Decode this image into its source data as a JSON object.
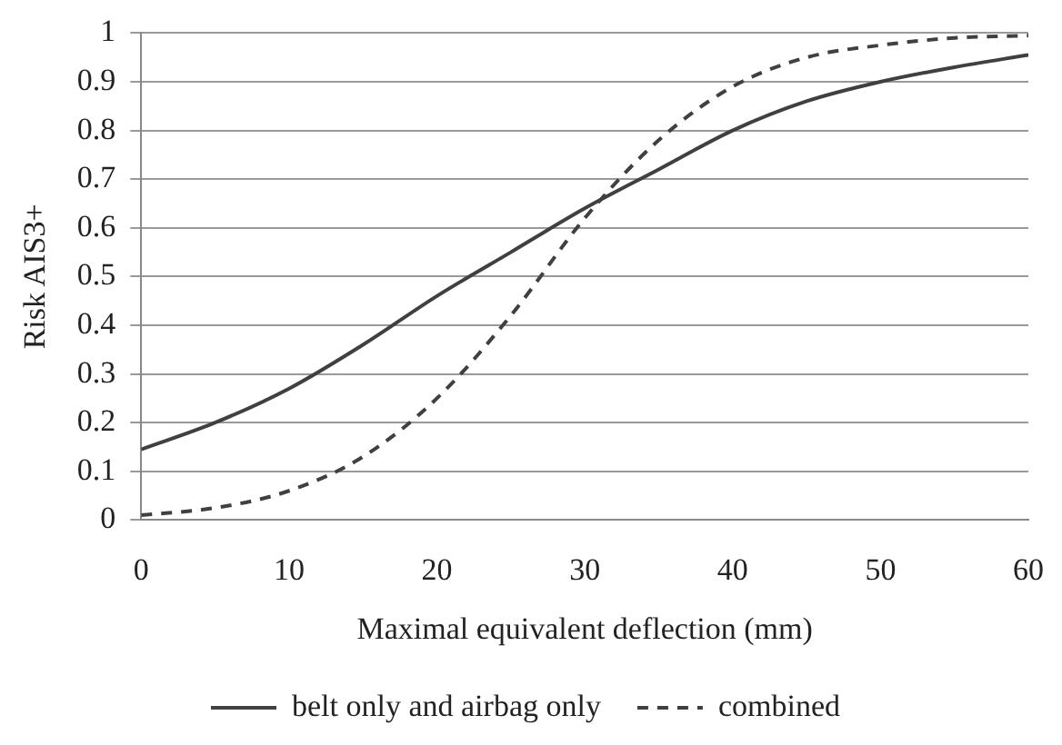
{
  "chart_data": {
    "type": "line",
    "xlabel": "Maximal equivalent deflection (mm)",
    "ylabel": "Risk AIS3+",
    "x": [
      0,
      5,
      10,
      15,
      20,
      25,
      30,
      35,
      40,
      45,
      50,
      55,
      60
    ],
    "series": [
      {
        "name": "belt only and airbag only",
        "color": "#404040",
        "line_style": "solid",
        "values": [
          0.145,
          0.2,
          0.27,
          0.36,
          0.46,
          0.55,
          0.64,
          0.72,
          0.8,
          0.86,
          0.9,
          0.93,
          0.955
        ]
      },
      {
        "name": "combined",
        "color": "#404040",
        "line_style": "dashed",
        "values": [
          0.01,
          0.025,
          0.06,
          0.13,
          0.25,
          0.42,
          0.62,
          0.78,
          0.89,
          0.95,
          0.975,
          0.99,
          0.995
        ]
      }
    ],
    "xlim": [
      0,
      60
    ],
    "xticks": [
      0,
      10,
      20,
      30,
      40,
      50,
      60
    ],
    "ylim": [
      0,
      1
    ],
    "yticks": [
      0,
      0.1,
      0.2,
      0.3,
      0.4,
      0.5,
      0.6,
      0.7,
      0.8,
      0.9,
      1
    ],
    "grid": "y",
    "legend": "bottom",
    "marker": "none"
  }
}
